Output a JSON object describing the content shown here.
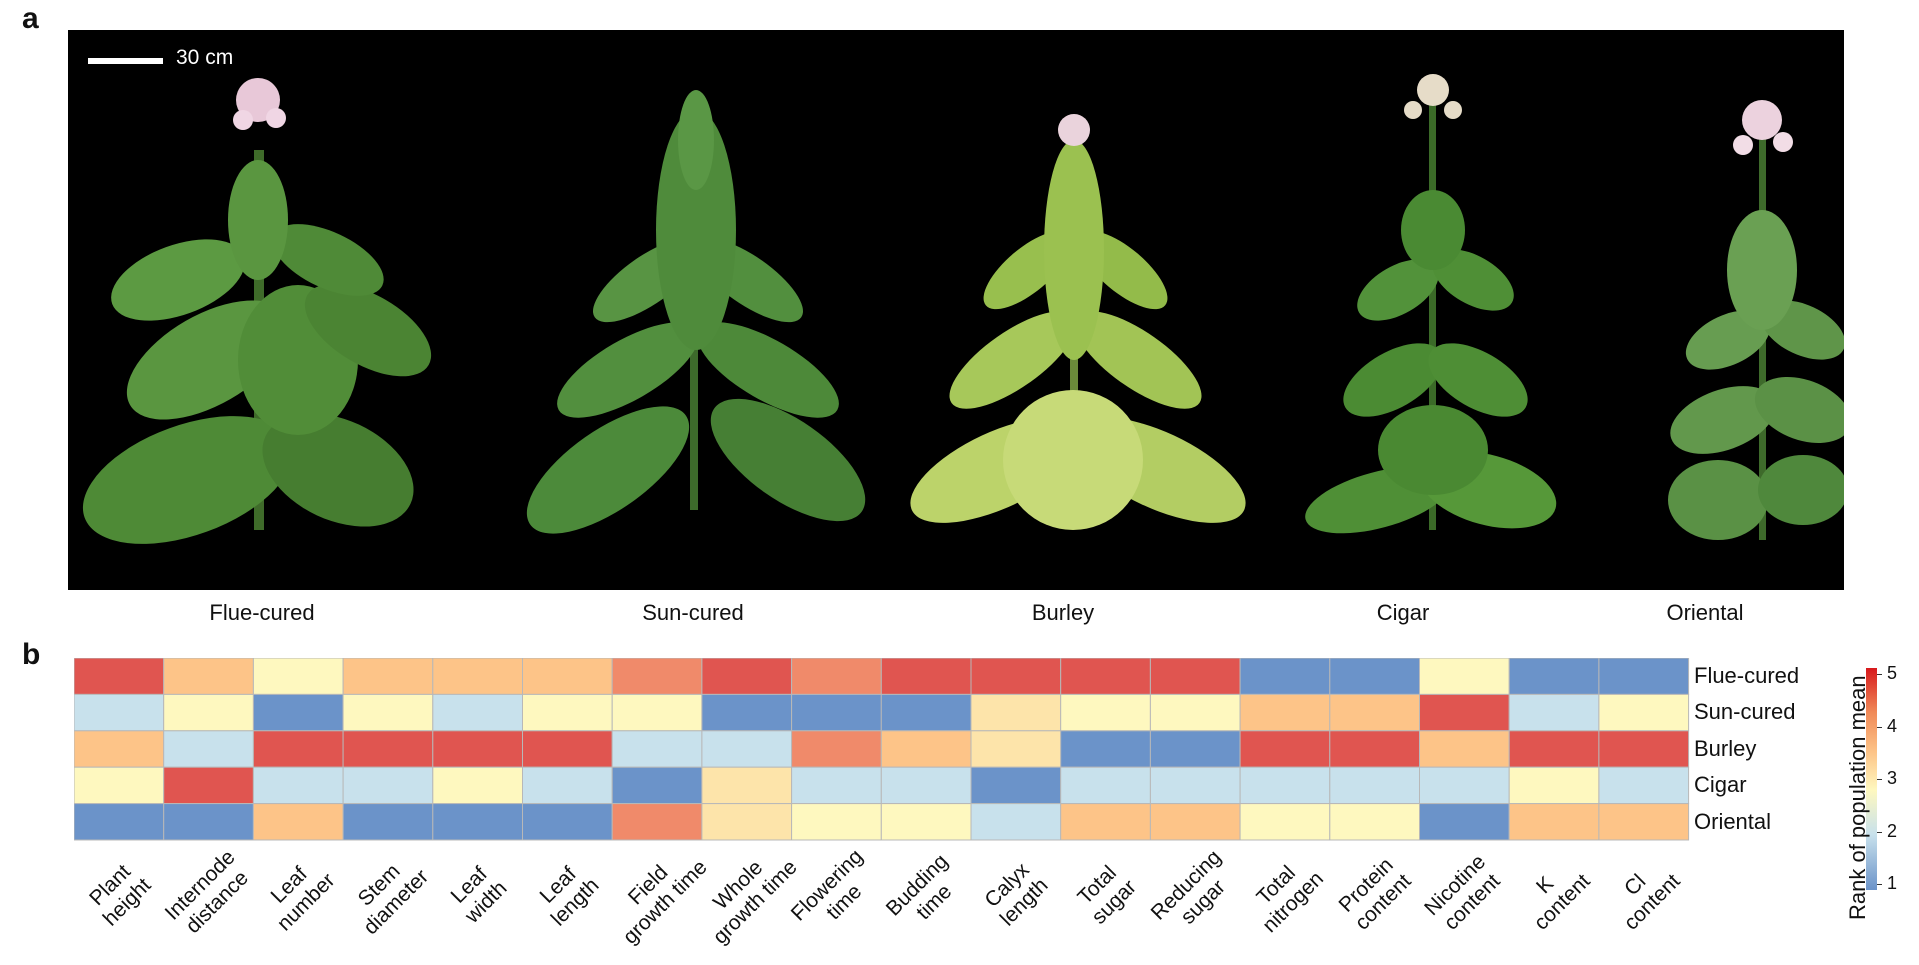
{
  "panels": {
    "a": "a",
    "b": "b"
  },
  "photo": {
    "scale_bar_label": "30 cm",
    "plant_labels": [
      "Flue-cured",
      "Sun-cured",
      "Burley",
      "Cigar",
      "Oriental"
    ]
  },
  "heatmap": {
    "colorbar_title": "Rank of population mean",
    "colorbar_ticks": [
      "5",
      "4",
      "3",
      "2",
      "1"
    ],
    "rank_colors": {
      "1": "#6b93c9",
      "2": "#c8e1ec",
      "3": "#fef8bf",
      "3.5": "#fde4aa",
      "4": "#fdc488",
      "4.5": "#f08a6a",
      "5": "#e05550"
    }
  },
  "chart_data": {
    "type": "heatmap",
    "rows": [
      "Flue-cured",
      "Sun-cured",
      "Burley",
      "Cigar",
      "Oriental"
    ],
    "columns": [
      [
        "Plant",
        "height"
      ],
      [
        "Internode",
        "distance"
      ],
      [
        "Leaf",
        "number"
      ],
      [
        "Stem",
        "diameter"
      ],
      [
        "Leaf",
        "width"
      ],
      [
        "Leaf",
        "length"
      ],
      [
        "Field",
        "growth time"
      ],
      [
        "Whole",
        "growth time"
      ],
      [
        "Flowering",
        "time"
      ],
      [
        "Budding",
        "time"
      ],
      [
        "Calyx",
        "length"
      ],
      [
        "Total",
        "sugar"
      ],
      [
        "Reducing",
        "sugar"
      ],
      [
        "Total",
        "nitrogen"
      ],
      [
        "Protein",
        "content"
      ],
      [
        "Nicotine",
        "content"
      ],
      [
        "K",
        "content"
      ],
      [
        "Cl",
        "content"
      ]
    ],
    "values": [
      [
        5,
        4,
        3,
        4,
        4,
        4,
        4.5,
        5,
        4.5,
        5,
        5,
        5,
        5,
        1,
        1,
        3,
        1,
        1
      ],
      [
        2,
        3,
        1,
        3,
        2,
        3,
        3,
        1,
        1,
        1,
        3.5,
        3,
        3,
        4,
        4,
        5,
        2,
        3
      ],
      [
        4,
        2,
        5,
        5,
        5,
        5,
        2,
        2,
        4.5,
        4,
        3.5,
        1,
        1,
        5,
        5,
        4,
        5,
        5
      ],
      [
        3,
        5,
        2,
        2,
        3,
        2,
        1,
        3.5,
        2,
        2,
        1,
        2,
        2,
        2,
        2,
        2,
        3,
        2
      ],
      [
        1,
        1,
        4,
        1,
        1,
        1,
        4.5,
        3.5,
        3,
        3,
        2,
        4,
        4,
        3,
        3,
        1,
        4,
        4
      ]
    ],
    "color_range": [
      1,
      5
    ]
  }
}
